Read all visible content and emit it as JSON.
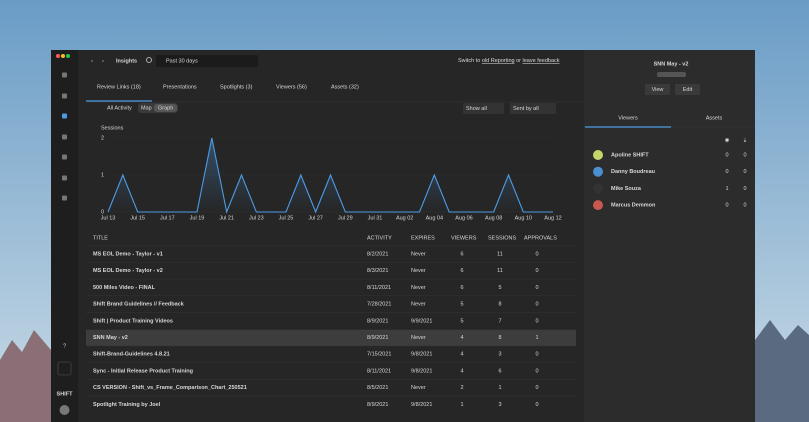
{
  "window": {
    "nav_title": "Insights",
    "date_filter": "Past 30 days",
    "switch_text": "Switch to",
    "old_reporting": "old Reporting",
    "or": "or",
    "leave_feedback": "leave feedback"
  },
  "sidebar": {
    "brand": "SHIFT"
  },
  "tabs": [
    "Review Links (18)",
    "Presentations",
    "Spotlights (3)",
    "Viewers (56)",
    "Assets (32)"
  ],
  "filters": {
    "all_activity": "All Activity",
    "map": "Map",
    "graph": "Graph",
    "show_all": "Show all",
    "sort_by": "Sent by all"
  },
  "chart": {
    "type": "line",
    "y_label": "Sessions",
    "categories": [
      "Jul 13",
      null,
      "Jul 15",
      null,
      "Jul 17",
      null,
      "Jul 19",
      null,
      "Jul 21",
      null,
      "Jul 23",
      null,
      "Jul 25",
      null,
      "Jul 27",
      null,
      "Jul 29",
      null,
      "Jul 31",
      null,
      "Aug 02",
      null,
      "Aug 04",
      null,
      "Aug 06",
      null,
      "Aug 08",
      null,
      "Aug 10",
      null,
      "Aug 12"
    ],
    "values": [
      0,
      1,
      0,
      0,
      0,
      0,
      0,
      2,
      0,
      1,
      0,
      0,
      0,
      1,
      0,
      1,
      0,
      0,
      0,
      0,
      0,
      0,
      1,
      0,
      0,
      0,
      0,
      1,
      0,
      0,
      0
    ],
    "ylim": [
      0,
      2
    ],
    "yticks": [
      0,
      1,
      2
    ],
    "color": "#4d9be6"
  },
  "table": {
    "columns": [
      "TITLE",
      "ACTIVITY",
      "EXPIRES",
      "VIEWERS",
      "SESSIONS",
      "APPROVALS"
    ],
    "rows": [
      [
        "MS EOL Demo - Taylor - v1",
        "8/2/2021",
        "Never",
        6,
        11,
        0
      ],
      [
        "MS EOL Demo - Taylor - v2",
        "8/3/2021",
        "Never",
        6,
        11,
        0
      ],
      [
        "500 Miles Video - FINAL",
        "8/11/2021",
        "Never",
        6,
        5,
        0
      ],
      [
        "Shift Brand Guidelines // Feedback",
        "7/28/2021",
        "Never",
        5,
        8,
        0
      ],
      [
        "Shift | Product Training Videos",
        "8/9/2021",
        "9/9/2021",
        5,
        7,
        0
      ],
      [
        "SNN May - v2",
        "8/9/2021",
        "Never",
        4,
        8,
        1
      ],
      [
        "Shift-Brand-Guidelines 4.8.21",
        "7/15/2021",
        "9/8/2021",
        4,
        3,
        0
      ],
      [
        "Sync - Initial Release Product Training",
        "8/11/2021",
        "9/8/2021",
        4,
        6,
        0
      ],
      [
        "CS VERSION - Shift_vs_Frame_Comparison_Chart_250521",
        "8/5/2021",
        "Never",
        2,
        1,
        0
      ],
      [
        "Spotlight Training by Joel",
        "8/9/2021",
        "9/8/2021",
        1,
        3,
        0
      ]
    ],
    "selected_row": 5
  },
  "detail": {
    "title": "SNN May - v2",
    "buttons": [
      "View",
      "Edit"
    ],
    "tabs": [
      "Viewers",
      "Assets"
    ],
    "viewers": [
      {
        "name": "Apoline SHIFT",
        "values": [
          0,
          0
        ]
      },
      {
        "name": "Danny Boudreau",
        "values": [
          0,
          0
        ]
      },
      {
        "name": "Mike Souza",
        "values": [
          1,
          0
        ]
      },
      {
        "name": "Marcus Demmon",
        "values": [
          0,
          0
        ]
      }
    ]
  }
}
